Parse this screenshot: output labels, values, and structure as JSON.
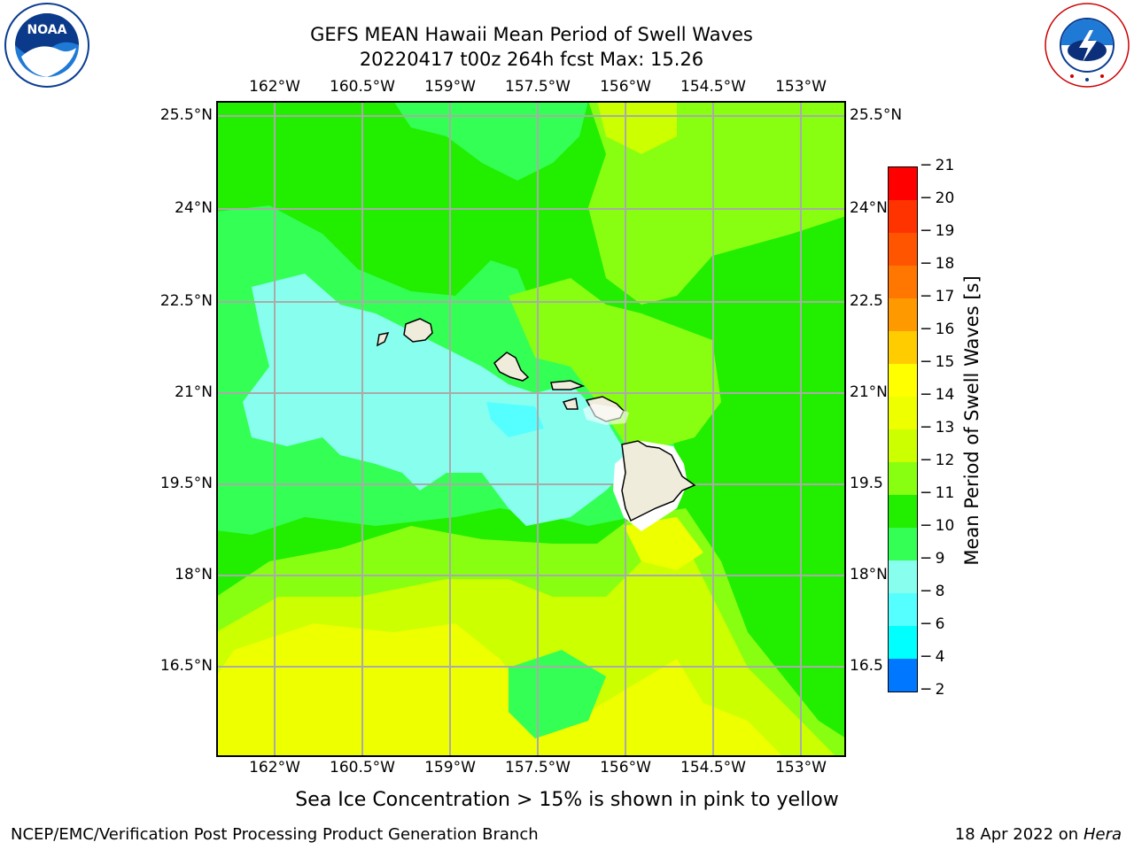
{
  "title": {
    "line1": "GEFS MEAN Hawaii Mean Period of Swell Waves",
    "line2": "20220417 t00z 264h fcst   Max: 15.26"
  },
  "map": {
    "lon_labels": [
      "162°W",
      "160.5°W",
      "159°W",
      "157.5°W",
      "156°W",
      "154.5°W",
      "153°W"
    ],
    "lat_labels_left": [
      "25.5°N",
      "24°N",
      "22.5°N",
      "21°N",
      "19.5°N",
      "18°N",
      "16.5°N"
    ],
    "lat_labels_right": [
      "25.5°N",
      "24°N",
      "22.5",
      "21°N",
      "19.5",
      "18°N",
      "16.5"
    ],
    "field_colors": {
      "green_11": "#22ee00",
      "green_10": "#33ff55",
      "cyan_9": "#88ffee",
      "cyan_8": "#55ffff",
      "lime_12": "#88ff11",
      "yellow_13": "#ccff00",
      "yellow_14": "#eeff00",
      "land": "#f0ecdc"
    }
  },
  "colorbar": {
    "label": "Mean Period of Swell Waves [s]",
    "ticks": [
      "21",
      "20",
      "19",
      "18",
      "17",
      "16",
      "15",
      "14",
      "13",
      "12",
      "11",
      "10",
      "9",
      "8",
      "6",
      "4",
      "2"
    ],
    "colors": [
      "#ff0000",
      "#ff3300",
      "#ff5500",
      "#ff7700",
      "#ff9900",
      "#ffcc00",
      "#ffff00",
      "#eeff00",
      "#ccff00",
      "#88ff11",
      "#22ee00",
      "#33ff55",
      "#88ffee",
      "#55ffff",
      "#00ffff",
      "#0077ff",
      "#0000ff"
    ]
  },
  "logos": {
    "noaa_text": "NOAA",
    "noaa_ring": "NATIONAL OCEANIC AND ATMOSPHERIC ADMINISTRATION · U.S. DEPARTMENT OF COMMERCE",
    "nws_ring": "NATIONAL WEATHER SERVICE"
  },
  "note": "Sea Ice Concentration > 15% is shown in pink to yellow",
  "footer": {
    "left": "NCEP/EMC/Verification Post Processing Product Generation Branch",
    "date": "18 Apr 2022 on ",
    "host": "Hera"
  }
}
